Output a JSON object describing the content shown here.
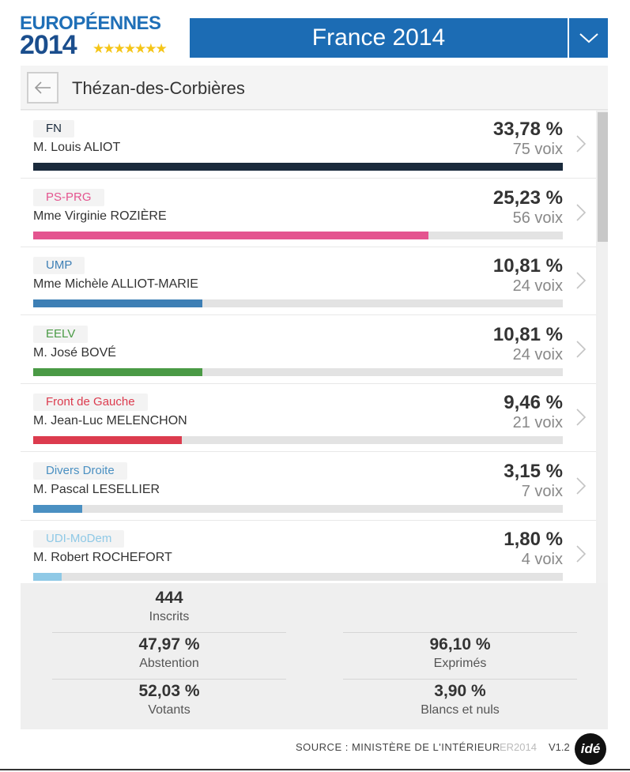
{
  "header": {
    "logo_line1": "EUROPÉENNES",
    "logo_line2": "2014",
    "country": "France 2014"
  },
  "commune": {
    "name": "Thézan-des-Corbières"
  },
  "results": [
    {
      "party": "FN",
      "candidate": "M. Louis ALIOT",
      "percent": "33,78 %",
      "votes": "75 voix",
      "share": 0.3378,
      "color": "#1a2a3c"
    },
    {
      "party": "PS-PRG",
      "candidate": "Mme Virginie ROZIÈRE",
      "percent": "25,23 %",
      "votes": "56 voix",
      "share": 0.2523,
      "color": "#e4548f"
    },
    {
      "party": "UMP",
      "candidate": "Mme Michèle ALLIOT-MARIE",
      "percent": "10,81 %",
      "votes": "24 voix",
      "share": 0.1081,
      "color": "#3d7fb5"
    },
    {
      "party": "EELV",
      "candidate": "M. José BOVÉ",
      "percent": "10,81 %",
      "votes": "24 voix",
      "share": 0.1081,
      "color": "#4a9a45"
    },
    {
      "party": "Front de Gauche",
      "candidate": "M. Jean-Luc MELENCHON",
      "percent": "9,46 %",
      "votes": "21 voix",
      "share": 0.0946,
      "color": "#dc3b4e"
    },
    {
      "party": "Divers Droite",
      "candidate": "M. Pascal LESELLIER",
      "percent": "3,15 %",
      "votes": "7 voix",
      "share": 0.0315,
      "color": "#4a90c2"
    },
    {
      "party": "UDI-MoDem",
      "candidate": "M. Robert ROCHEFORT",
      "percent": "1,80 %",
      "votes": "4 voix",
      "share": 0.018,
      "color": "#8fc9e6"
    }
  ],
  "stats": {
    "inscrits": {
      "value": "444",
      "label": "Inscrits"
    },
    "abstention": {
      "value": "47,97 %",
      "label": "Abstention"
    },
    "exprimes": {
      "value": "96,10 %",
      "label": "Exprimés"
    },
    "votants": {
      "value": "52,03 %",
      "label": "Votants"
    },
    "blancs": {
      "value": "3,90 %",
      "label": "Blancs et nuls"
    }
  },
  "footer": {
    "source": "SOURCE : MINISTÈRE DE L'INTÉRIEUR",
    "code": "ER2014",
    "version": "V1.2",
    "brand": "idé"
  }
}
